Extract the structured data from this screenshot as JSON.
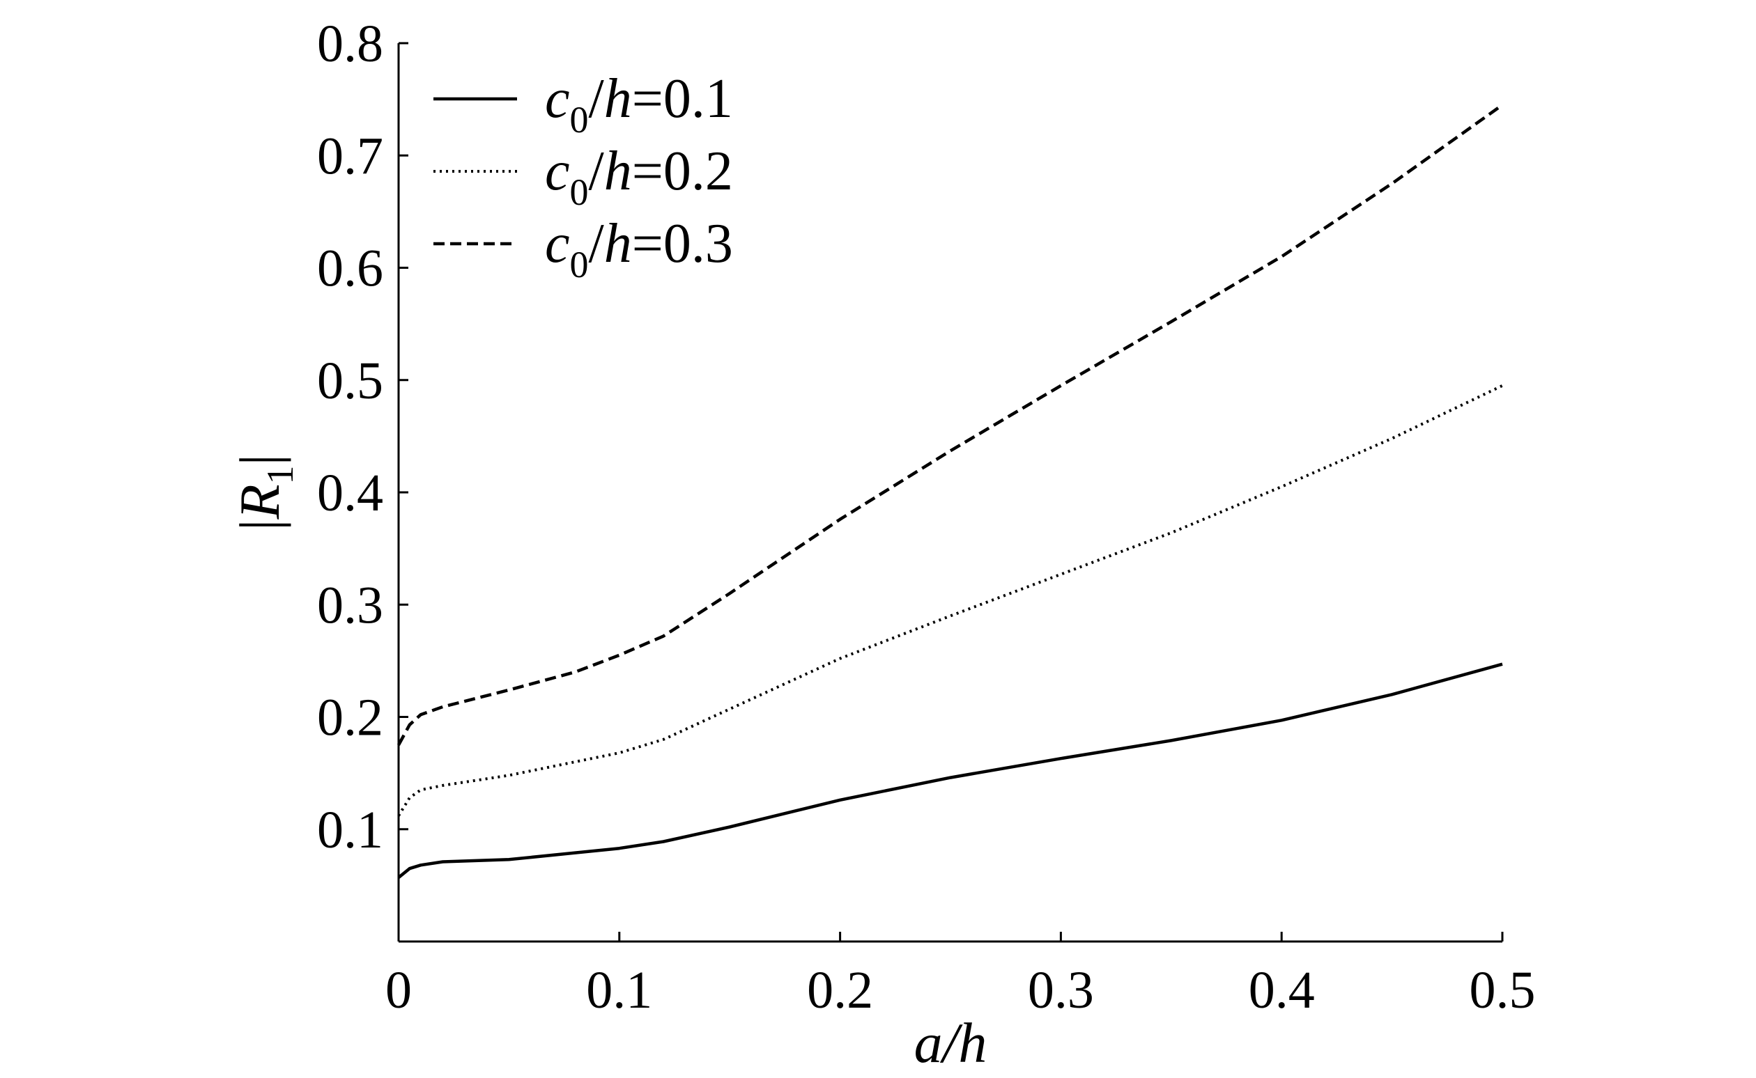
{
  "chart_data": {
    "type": "line",
    "xlabel": "a/h",
    "ylabel": "|R1|",
    "xlim": [
      0,
      0.5
    ],
    "ylim": [
      0,
      0.8
    ],
    "x_ticks": [
      "0",
      "0.1",
      "0.2",
      "0.3",
      "0.4",
      "0.5"
    ],
    "y_ticks": [
      "0.1",
      "0.2",
      "0.3",
      "0.4",
      "0.5",
      "0.6",
      "0.7",
      "0.8"
    ],
    "x_tick_values": [
      0,
      0.1,
      0.2,
      0.3,
      0.4,
      0.5
    ],
    "y_tick_values": [
      0.1,
      0.2,
      0.3,
      0.4,
      0.5,
      0.6,
      0.7,
      0.8
    ],
    "grid": false,
    "legend_position": "top-left",
    "series": [
      {
        "name": "c0/h=0.1",
        "name_parts": {
          "var": "c",
          "sub": "0",
          "rest": "/h=0.1"
        },
        "style": "solid",
        "color": "#000000",
        "x": [
          0,
          0.005,
          0.01,
          0.02,
          0.05,
          0.08,
          0.1,
          0.12,
          0.15,
          0.2,
          0.25,
          0.3,
          0.35,
          0.4,
          0.45,
          0.5
        ],
        "y": [
          0.057,
          0.065,
          0.068,
          0.071,
          0.073,
          0.079,
          0.083,
          0.089,
          0.102,
          0.126,
          0.146,
          0.163,
          0.179,
          0.197,
          0.22,
          0.247
        ]
      },
      {
        "name": "c0/h=0.2",
        "name_parts": {
          "var": "c",
          "sub": "0",
          "rest": "/h=0.2"
        },
        "style": "dotted",
        "color": "#000000",
        "x": [
          0,
          0.005,
          0.01,
          0.02,
          0.05,
          0.08,
          0.1,
          0.12,
          0.15,
          0.2,
          0.25,
          0.3,
          0.35,
          0.4,
          0.45,
          0.5
        ],
        "y": [
          0.112,
          0.128,
          0.135,
          0.139,
          0.148,
          0.16,
          0.168,
          0.18,
          0.207,
          0.252,
          0.29,
          0.327,
          0.364,
          0.405,
          0.448,
          0.495
        ]
      },
      {
        "name": "c0/h=0.3",
        "name_parts": {
          "var": "c",
          "sub": "0",
          "rest": "/h=0.3"
        },
        "style": "dashed",
        "color": "#000000",
        "x": [
          0,
          0.005,
          0.01,
          0.02,
          0.05,
          0.08,
          0.1,
          0.12,
          0.15,
          0.2,
          0.25,
          0.3,
          0.35,
          0.4,
          0.45,
          0.5
        ],
        "y": [
          0.175,
          0.193,
          0.202,
          0.209,
          0.224,
          0.24,
          0.255,
          0.272,
          0.31,
          0.376,
          0.437,
          0.495,
          0.552,
          0.61,
          0.675,
          0.745
        ]
      }
    ]
  }
}
